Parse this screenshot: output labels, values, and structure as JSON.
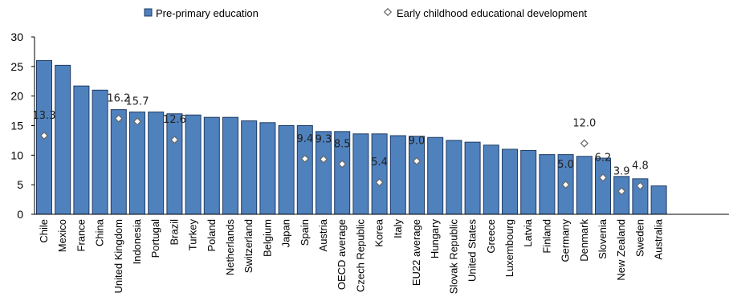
{
  "chart_data": {
    "type": "bar",
    "legend_position": "top",
    "grid": false,
    "ylim": [
      0,
      30
    ],
    "yticks": [
      "0",
      "5",
      "10",
      "15",
      "20",
      "25",
      "30"
    ],
    "colors": {
      "bar": "#4F81BD",
      "bar_edge": "#1F3B63",
      "marker_fill": "#ffffff",
      "marker_edge": "#666666"
    },
    "categories": [
      "Chile",
      "Mexico",
      "France",
      "China",
      "United Kingdom",
      "Indonesia",
      "Portugal",
      "Brazil",
      "Turkey",
      "Poland",
      "Netherlands",
      "Switzerland",
      "Belgium",
      "Japan",
      "Spain",
      "Austria",
      "OECD average",
      "Czech Republic",
      "Korea",
      "Italy",
      "EU22 average",
      "Hungary",
      "Slovak Republic",
      "United States",
      "Greece",
      "Luxembourg",
      "Latvia",
      "Finland",
      "Germany",
      "Denmark",
      "Slovenia",
      "New Zealand",
      "Sweden",
      "Australia"
    ],
    "series": [
      {
        "name": "Pre-primary education",
        "kind": "bar",
        "values": [
          26.0,
          25.2,
          21.7,
          21.0,
          17.7,
          17.3,
          17.3,
          17.0,
          16.8,
          16.4,
          16.4,
          15.8,
          15.5,
          15.0,
          15.0,
          14.0,
          14.0,
          13.6,
          13.6,
          13.3,
          13.2,
          13.0,
          12.5,
          12.2,
          11.7,
          11.0,
          10.8,
          10.1,
          10.1,
          9.8,
          9.5,
          6.4,
          6.0,
          4.8
        ]
      },
      {
        "name": "Early childhood educational development",
        "kind": "marker",
        "values": [
          13.3,
          null,
          null,
          null,
          16.2,
          15.7,
          null,
          12.6,
          null,
          null,
          null,
          null,
          null,
          null,
          9.4,
          9.3,
          8.5,
          null,
          5.4,
          null,
          9.0,
          null,
          null,
          null,
          null,
          null,
          null,
          null,
          5.0,
          12.0,
          6.2,
          3.9,
          4.8,
          null
        ],
        "labels": [
          "13.3",
          null,
          null,
          null,
          "16.2",
          "15.7",
          null,
          "12.6",
          null,
          null,
          null,
          null,
          null,
          null,
          "9.4",
          "9.3",
          "8.5",
          null,
          "5.4",
          null,
          "9.0",
          null,
          null,
          null,
          null,
          null,
          null,
          null,
          "5.0",
          "12.0",
          "6.2",
          "3.9",
          "4.8",
          null
        ]
      }
    ]
  }
}
